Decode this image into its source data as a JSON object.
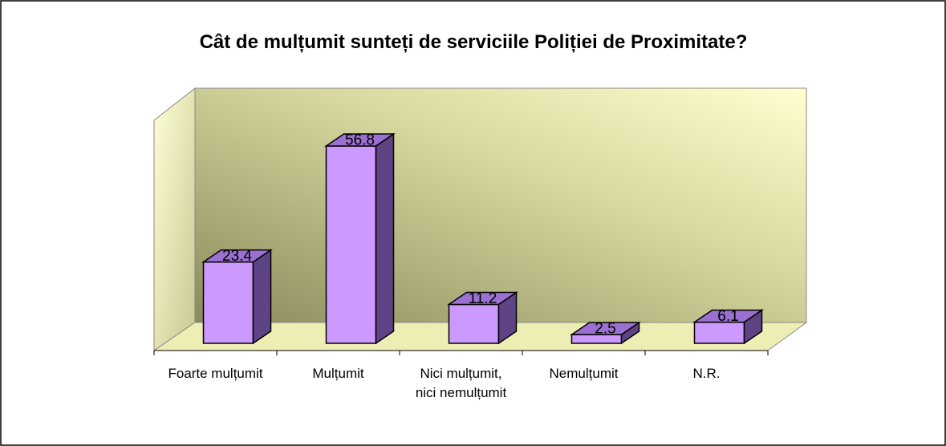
{
  "chart_data": {
    "type": "bar3d",
    "title": "Cât de mulțumit sunteți de serviciile Poliției de Proximitate?",
    "categories": [
      "Foarte mulțumit",
      "Mulțumit",
      "Nici mulțumit, nici nemulțumit",
      "Nemulțumit",
      "N.R."
    ],
    "values": [
      23.4,
      56.8,
      11.2,
      2.5,
      6.1
    ],
    "color": "#cc99ff"
  }
}
